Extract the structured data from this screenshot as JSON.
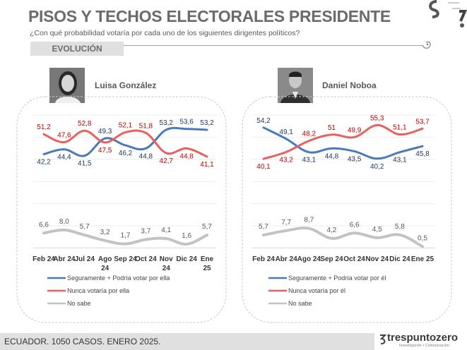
{
  "header": {
    "title": "PISOS Y TECHOS ELECTORALES PRESIDENTE",
    "subtitle": "¿Con qué probabilidad votaría por cada uno de los siguientes dirigentes políticos?",
    "section": "EVOLUCIÓN"
  },
  "footer": {
    "note": "ECUADOR. 1050 CASOS. ENERO 2025.",
    "brand": "trespuntozero",
    "brand_sub": "Investigación • Comunicación"
  },
  "colors": {
    "blue": "#4a7ab8",
    "red": "#e8605f",
    "gray": "#c3c3c3",
    "blue_label": "#1f3864",
    "red_label": "#c00000",
    "gray_label": "#595959"
  },
  "chart_data": [
    {
      "type": "line",
      "title": "Luisa González",
      "x": [
        "Feb 24",
        "Abr 24",
        "Jul 24",
        "Ago 24",
        "Sep 24",
        "Oct 24",
        "Nov 24",
        "Dic 24",
        "Ene 25"
      ],
      "x_display": [
        [
          "Feb 24"
        ],
        [
          "Abr 24"
        ],
        [
          "Jul 24"
        ],
        [
          "Ago",
          "24"
        ],
        [
          "Sep 24"
        ],
        [
          "Oct 24"
        ],
        [
          "Nov",
          "24"
        ],
        [
          "Dic 24"
        ],
        [
          "Ene",
          "25"
        ]
      ],
      "series": [
        {
          "name": "Seguramente + Podría votar por ella",
          "color": "blue",
          "values": [
            42.2,
            44.4,
            41.5,
            49.3,
            46.2,
            44.8,
            53.2,
            53.6,
            53.2
          ],
          "labels": [
            "42,2",
            "44,4",
            "41,5",
            "49,3",
            "46,2",
            "44,8",
            "53,2",
            "53,6",
            "53,2"
          ]
        },
        {
          "name": "Nunca  votaría por ella",
          "color": "red",
          "values": [
            51.2,
            47.6,
            52.8,
            47.5,
            52.1,
            51.8,
            42.7,
            44.8,
            41.1
          ],
          "labels": [
            "51,2",
            "47,6",
            "52,8",
            "47,5",
            "52,1",
            "51,8",
            "42,7",
            "44,8",
            "41,1"
          ]
        },
        {
          "name": "No sabe",
          "color": "gray",
          "values": [
            6.6,
            8.0,
            5.7,
            3.2,
            1.7,
            3.7,
            4.1,
            1.6,
            5.7
          ],
          "labels": [
            "6,6",
            "8,0",
            "5,7",
            "3,2",
            "1,7",
            "3,7",
            "4,1",
            "1,6",
            "5,7"
          ]
        }
      ],
      "grid": true,
      "legend": "bottom"
    },
    {
      "type": "line",
      "title": "Daniel Noboa",
      "x": [
        "Feb 24",
        "Abr 24",
        "Ago 24",
        "Sep 24",
        "Oct 24",
        "Nov 24",
        "Dic 24",
        "Ene 25"
      ],
      "x_display": [
        [
          "Feb 24"
        ],
        [
          "Abr 24"
        ],
        [
          "Ago 24"
        ],
        [
          "Sep 24"
        ],
        [
          "Oct 24"
        ],
        [
          "Nov 24"
        ],
        [
          "Dic 24"
        ],
        [
          "Ene 25"
        ]
      ],
      "series": [
        {
          "name": "Seguramente + Podría votar por él",
          "color": "blue",
          "values": [
            54.2,
            49.1,
            43.1,
            44.8,
            43.5,
            40.2,
            43.1,
            45.8
          ],
          "labels": [
            "54,2",
            "49,1",
            "43,1",
            "44,8",
            "43,5",
            "40,2",
            "43,1",
            "45,8"
          ]
        },
        {
          "name": "Nunca  votaría por él",
          "color": "red",
          "values": [
            40.1,
            43.2,
            48.2,
            51,
            49.9,
            55.3,
            51.1,
            53.7
          ],
          "labels": [
            "40,1",
            "43,2",
            "48,2",
            "51",
            "49,9",
            "55,3",
            "51,1",
            "53,7"
          ]
        },
        {
          "name": "No sabe",
          "color": "gray",
          "values": [
            5.7,
            7.7,
            8.7,
            4.2,
            6.6,
            4.5,
            5.8,
            0.5
          ],
          "labels": [
            "5,7",
            "7,7",
            "8,7",
            "4,2",
            "6,6",
            "4,5",
            "5,8",
            "0,5"
          ]
        }
      ],
      "grid": true,
      "legend": "bottom"
    }
  ]
}
